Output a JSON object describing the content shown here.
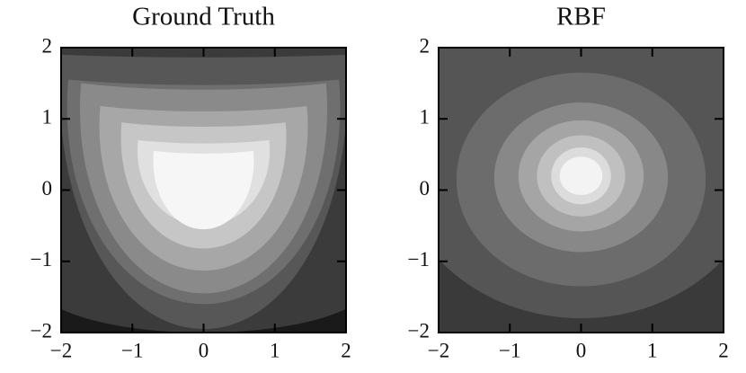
{
  "chart_data": [
    {
      "type": "contour",
      "title": "Ground Truth",
      "xlim": [
        -2,
        2
      ],
      "ylim": [
        -2,
        2
      ],
      "xticks": [
        {
          "value": -2,
          "label": "−2"
        },
        {
          "value": -1,
          "label": "−1"
        },
        0,
        1,
        2
      ],
      "yticks": [
        {
          "value": -2,
          "label": "−2"
        },
        {
          "value": -1,
          "label": "−1"
        },
        0,
        1,
        2
      ],
      "colors": [
        "#1a1a1a",
        "#3b3b3b",
        "#575757",
        "#6f6f6f",
        "#8a8a8a",
        "#a7a7a7",
        "#c6c6c6",
        "#e0e0e0",
        "#f6f6f6"
      ]
    },
    {
      "type": "contour",
      "title": "RBF",
      "xlim": [
        -2,
        2
      ],
      "ylim": [
        -2,
        2
      ],
      "xticks": [
        {
          "value": -2,
          "label": "−2"
        },
        {
          "value": -1,
          "label": "−1"
        },
        0,
        1,
        2
      ],
      "yticks": [
        {
          "value": -2,
          "label": "−2"
        },
        {
          "value": -1,
          "label": "−1"
        },
        0,
        1,
        2
      ],
      "colors": [
        "#3a3a3a",
        "#555555",
        "#6c6c6c",
        "#888888",
        "#a5a5a5",
        "#c0c0c0",
        "#dcdcdc",
        "#f3f3f3"
      ]
    }
  ]
}
